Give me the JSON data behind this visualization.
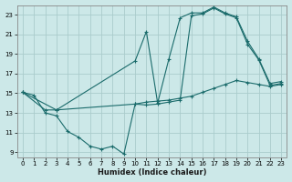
{
  "xlabel": "Humidex (Indice chaleur)",
  "bg_color": "#cce8e8",
  "grid_color": "#aacccc",
  "line_color": "#1a6b6b",
  "xlim": [
    -0.5,
    23.5
  ],
  "ylim": [
    8.5,
    24.0
  ],
  "xticks": [
    0,
    1,
    2,
    3,
    4,
    5,
    6,
    7,
    8,
    9,
    10,
    11,
    12,
    13,
    14,
    15,
    16,
    17,
    18,
    19,
    20,
    21,
    22,
    23
  ],
  "yticks": [
    9,
    11,
    13,
    15,
    17,
    19,
    21,
    23
  ],
  "line1_x": [
    0,
    1,
    2,
    3,
    4,
    5,
    6,
    7,
    8,
    9,
    10,
    11,
    12,
    13,
    14,
    15,
    16,
    17,
    18,
    19,
    20,
    21,
    22,
    23
  ],
  "line1_y": [
    15.1,
    14.8,
    13.0,
    12.7,
    11.1,
    10.5,
    9.6,
    9.3,
    9.6,
    8.8,
    13.9,
    14.1,
    14.2,
    14.3,
    14.5,
    14.7,
    15.1,
    15.5,
    15.9,
    16.3,
    16.1,
    15.9,
    15.7,
    15.9
  ],
  "line2_x": [
    0,
    2,
    3,
    10,
    11,
    12,
    13,
    14,
    15,
    16,
    17,
    18,
    19,
    20,
    21,
    22,
    23
  ],
  "line2_y": [
    15.1,
    13.3,
    13.3,
    18.3,
    21.3,
    14.0,
    18.5,
    22.7,
    23.2,
    23.2,
    23.8,
    23.2,
    22.8,
    20.3,
    18.5,
    16.0,
    16.2
  ],
  "line3_x": [
    0,
    3,
    10,
    11,
    12,
    13,
    14,
    15,
    16,
    17,
    18,
    19,
    20,
    21,
    22,
    23
  ],
  "line3_y": [
    15.1,
    13.3,
    13.9,
    13.8,
    13.9,
    14.1,
    14.3,
    22.9,
    23.1,
    23.7,
    23.1,
    22.7,
    20.0,
    18.4,
    15.8,
    16.0
  ]
}
